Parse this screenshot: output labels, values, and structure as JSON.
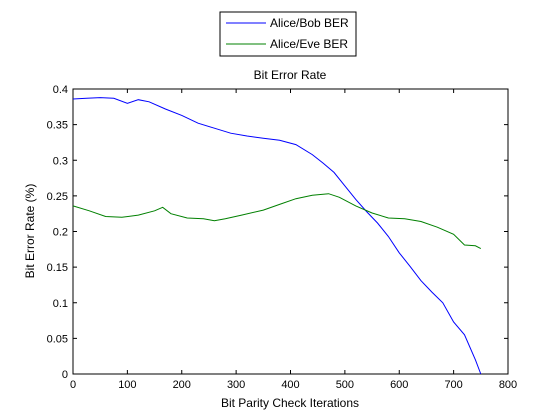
{
  "chart_data": {
    "type": "line",
    "title": "Bit Error Rate",
    "xlabel": "Bit Parity Check Iterations",
    "ylabel": "Bit Error Rate (%)",
    "xlim": [
      0,
      800
    ],
    "ylim": [
      0,
      0.4
    ],
    "x_ticks": [
      0,
      100,
      200,
      300,
      400,
      500,
      600,
      700,
      800
    ],
    "y_ticks": [
      0,
      0.05,
      0.1,
      0.15,
      0.2,
      0.25,
      0.3,
      0.35,
      0.4
    ],
    "x_tick_labels": [
      "0",
      "100",
      "200",
      "300",
      "400",
      "500",
      "600",
      "700",
      "800"
    ],
    "y_tick_labels": [
      "0",
      "0.05",
      "0.1",
      "0.15",
      "0.2",
      "0.25",
      "0.3",
      "0.35",
      "0.4"
    ],
    "grid": false,
    "legend_position": "top-center-outside",
    "series": [
      {
        "name": "Alice/Bob BER",
        "color": "#0000ff",
        "x": [
          0,
          25,
          50,
          75,
          100,
          120,
          140,
          170,
          200,
          230,
          260,
          290,
          320,
          350,
          380,
          410,
          440,
          460,
          480,
          500,
          520,
          540,
          560,
          580,
          600,
          620,
          640,
          660,
          680,
          700,
          720,
          740,
          750
        ],
        "y": [
          0.386,
          0.387,
          0.388,
          0.387,
          0.38,
          0.385,
          0.382,
          0.372,
          0.363,
          0.352,
          0.345,
          0.338,
          0.334,
          0.331,
          0.328,
          0.322,
          0.308,
          0.296,
          0.283,
          0.264,
          0.245,
          0.228,
          0.212,
          0.193,
          0.17,
          0.151,
          0.131,
          0.115,
          0.1,
          0.073,
          0.055,
          0.02,
          0.0
        ]
      },
      {
        "name": "Alice/Eve BER",
        "color": "#008000",
        "x": [
          0,
          30,
          60,
          90,
          120,
          150,
          165,
          180,
          210,
          240,
          260,
          280,
          310,
          350,
          380,
          410,
          440,
          470,
          490,
          520,
          550,
          580,
          610,
          640,
          670,
          700,
          720,
          740,
          750
        ],
        "y": [
          0.236,
          0.229,
          0.221,
          0.22,
          0.223,
          0.229,
          0.234,
          0.225,
          0.219,
          0.218,
          0.215,
          0.218,
          0.223,
          0.23,
          0.238,
          0.246,
          0.251,
          0.253,
          0.248,
          0.236,
          0.226,
          0.219,
          0.218,
          0.214,
          0.206,
          0.196,
          0.181,
          0.18,
          0.176
        ]
      }
    ]
  }
}
